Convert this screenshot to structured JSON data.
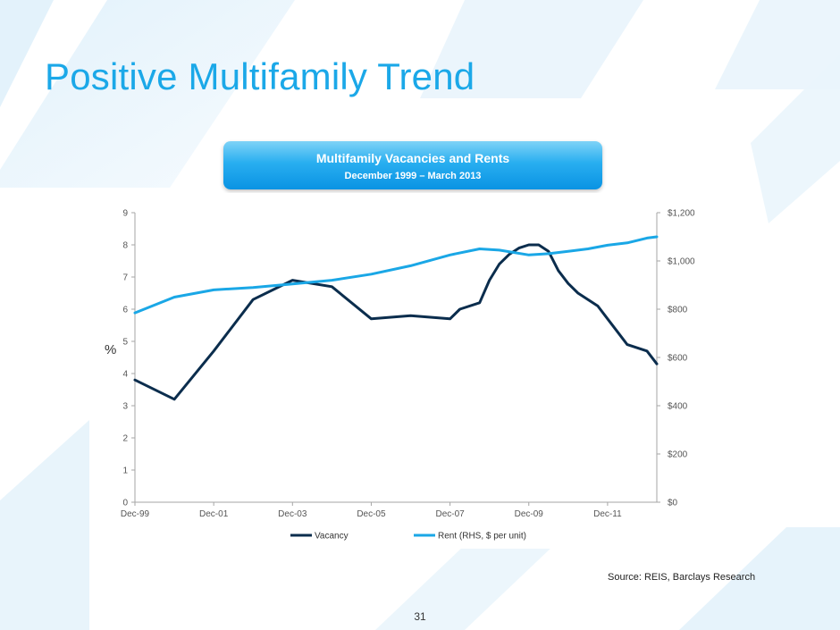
{
  "slide": {
    "title": "Positive Multifamily Trend",
    "banner_title": "Multifamily Vacancies and Rents",
    "banner_subtitle": "December 1999 – March 2013",
    "source": "Source: REIS, Barclays Research",
    "page_number": "31"
  },
  "colors": {
    "title": "#1ba8e8",
    "vacancy": "#0b2d4d",
    "rent": "#1aa7e6"
  },
  "chart_data": {
    "type": "line",
    "ylabel": "%",
    "x_tick_labels": [
      "Dec-99",
      "Dec-01",
      "Dec-03",
      "Dec-05",
      "Dec-07",
      "Dec-09",
      "Dec-11"
    ],
    "x_range": [
      1999.917,
      2013.167
    ],
    "y_left": {
      "min": 0,
      "max": 9,
      "ticks": [
        "0",
        "1",
        "2",
        "3",
        "4",
        "5",
        "6",
        "7",
        "8",
        "9"
      ]
    },
    "y_right": {
      "min": 0,
      "max": 1200,
      "ticks": [
        "$0",
        "$200",
        "$400",
        "$600",
        "$800",
        "$1,000",
        "$1,200"
      ]
    },
    "legend_position": "bottom",
    "grid": false,
    "series": [
      {
        "name": "Vacancy",
        "axis": "left",
        "points": [
          [
            1999.917,
            3.8
          ],
          [
            2000.917,
            3.2
          ],
          [
            2001.917,
            4.7
          ],
          [
            2002.917,
            6.3
          ],
          [
            2003.917,
            6.9
          ],
          [
            2004.917,
            6.7
          ],
          [
            2005.917,
            5.7
          ],
          [
            2006.917,
            5.8
          ],
          [
            2007.917,
            5.7
          ],
          [
            2008.167,
            6.0
          ],
          [
            2008.667,
            6.2
          ],
          [
            2008.917,
            6.9
          ],
          [
            2009.167,
            7.4
          ],
          [
            2009.417,
            7.7
          ],
          [
            2009.667,
            7.9
          ],
          [
            2009.917,
            8.0
          ],
          [
            2010.167,
            8.0
          ],
          [
            2010.417,
            7.8
          ],
          [
            2010.667,
            7.2
          ],
          [
            2010.917,
            6.8
          ],
          [
            2011.167,
            6.5
          ],
          [
            2011.667,
            6.1
          ],
          [
            2011.917,
            5.7
          ],
          [
            2012.167,
            5.3
          ],
          [
            2012.417,
            4.9
          ],
          [
            2012.917,
            4.7
          ],
          [
            2013.167,
            4.3
          ]
        ]
      },
      {
        "name": "Rent (RHS, $ per unit)",
        "axis": "right",
        "points": [
          [
            1999.917,
            785
          ],
          [
            2000.917,
            850
          ],
          [
            2001.917,
            880
          ],
          [
            2002.917,
            890
          ],
          [
            2003.917,
            905
          ],
          [
            2004.917,
            920
          ],
          [
            2005.917,
            945
          ],
          [
            2006.917,
            980
          ],
          [
            2007.917,
            1025
          ],
          [
            2008.667,
            1050
          ],
          [
            2009.167,
            1045
          ],
          [
            2009.917,
            1025
          ],
          [
            2010.417,
            1030
          ],
          [
            2010.917,
            1040
          ],
          [
            2011.417,
            1050
          ],
          [
            2011.917,
            1065
          ],
          [
            2012.417,
            1075
          ],
          [
            2012.917,
            1095
          ],
          [
            2013.167,
            1100
          ]
        ]
      }
    ]
  }
}
